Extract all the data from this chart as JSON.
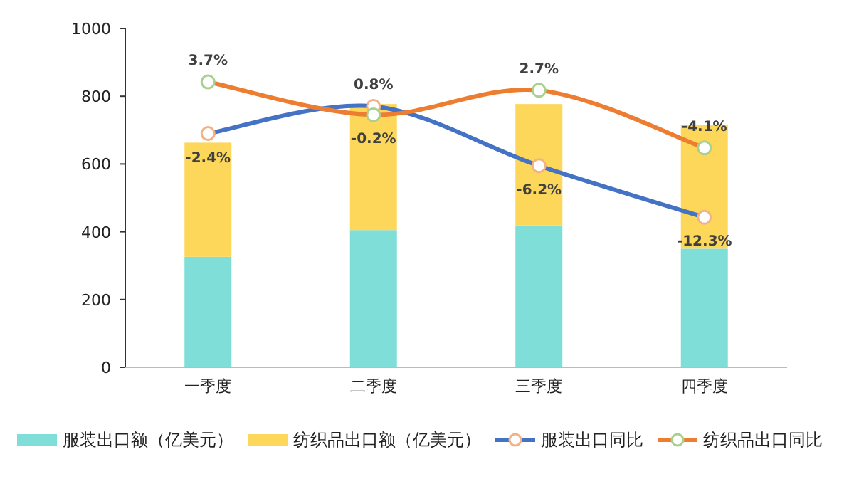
{
  "chart_data": {
    "type": "bar",
    "stacked": true,
    "categories": [
      "一季度",
      "二季度",
      "三季度",
      "四季度"
    ],
    "series": [
      {
        "name": "服装出口额（亿美元）",
        "color": "#7fded8",
        "values": [
          326,
          405,
          419,
          350
        ]
      },
      {
        "name": "纺织品出口额（亿美元）",
        "color": "#fdd75a",
        "values": [
          337,
          372,
          358,
          366
        ]
      },
      {
        "name": "服装出口同比",
        "type": "line",
        "axis": "y2",
        "color": "#4472c4",
        "values": [
          -2.4,
          0.8,
          -6.2,
          -12.3
        ],
        "value_labels": [
          "-2.4%",
          "0.8%",
          "-6.2%",
          "-12.3%"
        ]
      },
      {
        "name": "纺织品出口同比",
        "type": "line",
        "axis": "y2",
        "color": "#ed7d31",
        "values": [
          3.7,
          -0.2,
          2.7,
          -4.1
        ],
        "value_labels": [
          "3.7%",
          "-0.2%",
          "2.7%",
          "-4.1%"
        ]
      }
    ],
    "ylim": [
      0,
      1000
    ],
    "yticks": [
      0,
      200,
      400,
      600,
      800,
      1000
    ],
    "y2lim": [
      -30,
      10
    ],
    "legend": "bottom",
    "marker": "circle"
  }
}
